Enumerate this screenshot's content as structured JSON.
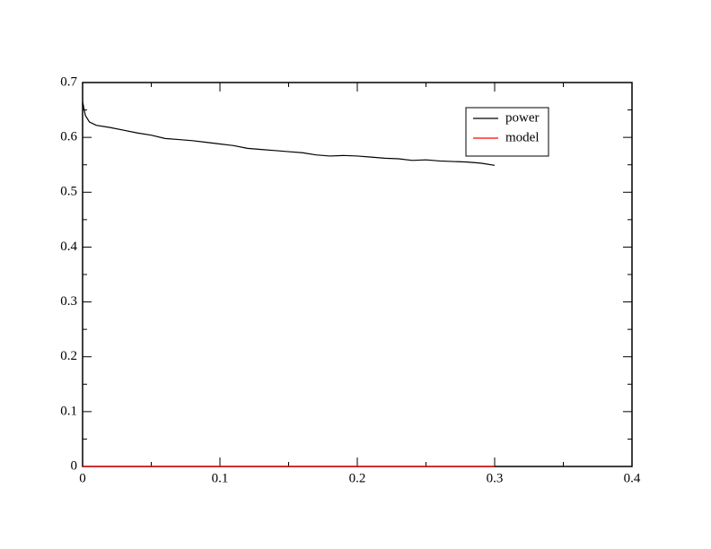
{
  "chart_data": {
    "type": "line",
    "xlim": [
      0,
      0.4
    ],
    "xticks": [
      0,
      0.1,
      0.2,
      0.3,
      0.4
    ],
    "xminorticks": [
      0.05,
      0.15,
      0.25,
      0.35
    ],
    "ylim": [
      0,
      0.7
    ],
    "yticks": [
      0,
      0.1,
      0.2,
      0.3,
      0.4,
      0.5,
      0.6,
      0.7
    ],
    "yminorticks": [
      0.05,
      0.15,
      0.25,
      0.35,
      0.45,
      0.55,
      0.65
    ],
    "legend": "upper-right",
    "series": [
      {
        "name": "power",
        "color": "#000000",
        "x": [
          0,
          0.002,
          0.005,
          0.01,
          0.02,
          0.03,
          0.04,
          0.05,
          0.06,
          0.07,
          0.08,
          0.09,
          0.1,
          0.11,
          0.12,
          0.13,
          0.14,
          0.15,
          0.16,
          0.17,
          0.18,
          0.19,
          0.2,
          0.21,
          0.22,
          0.23,
          0.24,
          0.25,
          0.26,
          0.27,
          0.28,
          0.29,
          0.3
        ],
        "values": [
          0.665,
          0.64,
          0.628,
          0.622,
          0.618,
          0.613,
          0.608,
          0.604,
          0.598,
          0.596,
          0.594,
          0.591,
          0.588,
          0.585,
          0.58,
          0.578,
          0.576,
          0.574,
          0.572,
          0.568,
          0.566,
          0.567,
          0.566,
          0.564,
          0.562,
          0.561,
          0.558,
          0.559,
          0.557,
          0.556,
          0.555,
          0.553,
          0.549
        ]
      },
      {
        "name": "model",
        "color": "#ff0000",
        "x": [
          0,
          0.3
        ],
        "values": [
          0,
          0
        ]
      }
    ]
  }
}
